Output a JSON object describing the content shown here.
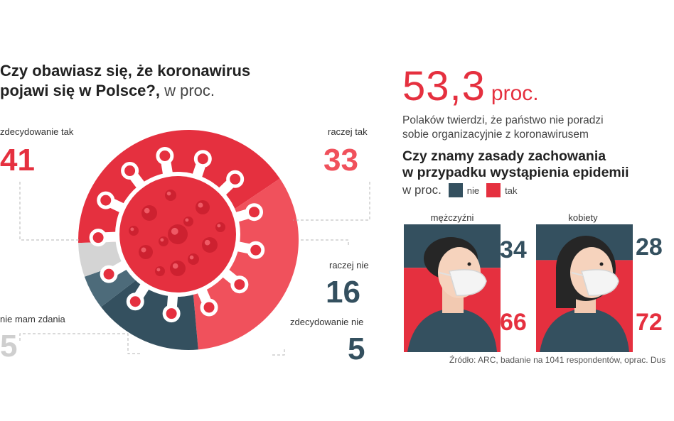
{
  "title": {
    "bold_line1": "Czy obawiasz się, że koronawirus",
    "bold_line2": "pojawi się w Polsce?,",
    "unit": "w proc."
  },
  "chart_data": [
    {
      "type": "pie",
      "title": "Czy obawiasz się, że koronawirus pojawi się w Polsce?, w proc.",
      "labels": [
        "zdecydowanie tak",
        "raczej tak",
        "raczej nie",
        "zdecydowanie nie",
        "nie mam zdania"
      ],
      "values": [
        41,
        33,
        16,
        5,
        5
      ],
      "colors": [
        "#e5303f",
        "#f0515c",
        "#34505f",
        "#4d6b7a",
        "#d4d4d4"
      ]
    },
    {
      "type": "bar",
      "title": "Czy znamy zasady zachowania w przypadku wystąpienia epidemii",
      "unit": "w proc.",
      "stacked": true,
      "categories": [
        "mężczyźni",
        "kobiety"
      ],
      "series": [
        {
          "name": "nie",
          "values": [
            34,
            28
          ],
          "color": "#34505f"
        },
        {
          "name": "tak",
          "values": [
            66,
            72
          ],
          "color": "#e5303f"
        }
      ],
      "ylim": [
        0,
        100
      ]
    }
  ],
  "pie_labels": {
    "zdecydowanie_tak": {
      "label": "zdecydowanie tak",
      "value": "41"
    },
    "raczej_tak": {
      "label": "raczej tak",
      "value": "33"
    },
    "raczej_nie": {
      "label": "raczej nie",
      "value": "16"
    },
    "zdecydowanie_nie": {
      "label": "zdecydowanie nie",
      "value": "5"
    },
    "nie_mam_zdania": {
      "label": "nie mam zdania",
      "value": "5"
    }
  },
  "headline": {
    "value": "53,3",
    "unit": "proc."
  },
  "subtext": {
    "line1": "Polaków twierdzi, że państwo nie poradzi",
    "line2": "sobie organizacyjnie z koronawirusem"
  },
  "question2": {
    "line1": "Czy znamy zasady zachowania",
    "line2": "w przypadku wystąpienia epidemii",
    "unit": "w proc."
  },
  "legend": {
    "nie": "nie",
    "tak": "tak"
  },
  "men": {
    "label": "mężczyźni",
    "nie": "34",
    "tak": "66"
  },
  "women": {
    "label": "kobiety",
    "nie": "28",
    "tak": "72"
  },
  "source": "Źródło: ARC, badanie na 1041 respondentów, oprac. Dus",
  "colors": {
    "red": "#e5303f",
    "dark": "#34505f",
    "grey": "#d4d4d4"
  }
}
